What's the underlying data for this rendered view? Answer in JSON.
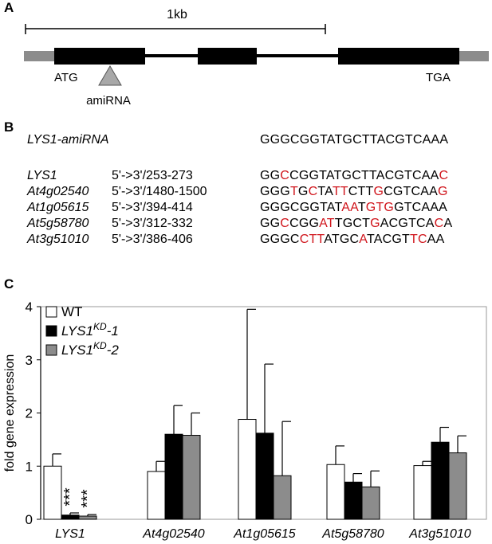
{
  "panel_a": {
    "label": "A",
    "scale_label": "1kb",
    "start_codon": "ATG",
    "stop_codon": "TGA",
    "amirna_label": "amiRNA"
  },
  "panel_b": {
    "label": "B",
    "amirna_name": "LYS1-amiRNA",
    "amirna_seq": "GGGCGGTATGCTTACGTCAAA",
    "rows": [
      {
        "name": "LYS1",
        "range": "5'->3'/253-273",
        "segments": [
          {
            "t": "GG",
            "m": false
          },
          {
            "t": "C",
            "m": true
          },
          {
            "t": "CGGTATGCTTACGTCAA",
            "m": false
          },
          {
            "t": "C",
            "m": true
          }
        ]
      },
      {
        "name": "At4g02540",
        "range": "5'->3'/1480-1500",
        "segments": [
          {
            "t": "GGG",
            "m": false
          },
          {
            "t": "T",
            "m": true
          },
          {
            "t": "G",
            "m": false
          },
          {
            "t": "C",
            "m": true
          },
          {
            "t": "TA",
            "m": false
          },
          {
            "t": "TT",
            "m": true
          },
          {
            "t": "CTT",
            "m": false
          },
          {
            "t": "G",
            "m": true
          },
          {
            "t": "CGTCAA",
            "m": false
          },
          {
            "t": "G",
            "m": true
          }
        ]
      },
      {
        "name": "At1g05615",
        "range": "5'->3'/394-414",
        "segments": [
          {
            "t": "GGGCGGTAT",
            "m": false
          },
          {
            "t": "AA",
            "m": true
          },
          {
            "t": "T",
            "m": false
          },
          {
            "t": "GTG",
            "m": true
          },
          {
            "t": "GTCAAA",
            "m": false
          }
        ]
      },
      {
        "name": "At5g58780",
        "range": "5'->3'/312-332",
        "segments": [
          {
            "t": "GG",
            "m": false
          },
          {
            "t": "C",
            "m": true
          },
          {
            "t": "CGG",
            "m": false
          },
          {
            "t": "AT",
            "m": true
          },
          {
            "t": "TGCT",
            "m": false
          },
          {
            "t": "G",
            "m": true
          },
          {
            "t": "ACGTCA",
            "m": false
          },
          {
            "t": "C",
            "m": true
          },
          {
            "t": "A",
            "m": false
          }
        ]
      },
      {
        "name": "At3g51010",
        "range": "5'->3'/386-406",
        "segments": [
          {
            "t": "GGGC",
            "m": false
          },
          {
            "t": "CTT",
            "m": true
          },
          {
            "t": "ATGC",
            "m": false
          },
          {
            "t": "A",
            "m": true
          },
          {
            "t": "TACGT",
            "m": false
          },
          {
            "t": "TC",
            "m": true
          },
          {
            "t": "AA",
            "m": false
          }
        ]
      }
    ]
  },
  "panel_c": {
    "label": "C",
    "legend_sup": "KD"
  },
  "chart_data": {
    "type": "bar",
    "ylabel": "fold gene expression",
    "ylim": [
      0,
      4
    ],
    "yticks": [
      "0",
      "1",
      "2",
      "3",
      "4"
    ],
    "categories": [
      "LYS1",
      "At4g02540",
      "At1g05615",
      "At5g58780",
      "At3g51010"
    ],
    "series": [
      {
        "name": "WT",
        "color": "#ffffff",
        "values": [
          1.0,
          0.9,
          1.88,
          1.03,
          1.01
        ],
        "errors": [
          0.23,
          0.19,
          2.07,
          0.35,
          0.08
        ]
      },
      {
        "name": "LYS1-1",
        "color": "#000000",
        "values": [
          0.08,
          1.6,
          1.62,
          0.7,
          1.45
        ],
        "errors": [
          0.04,
          0.54,
          1.3,
          0.16,
          0.28
        ]
      },
      {
        "name": "LYS1-2",
        "color": "#8c8c8c",
        "values": [
          0.06,
          1.58,
          0.82,
          0.61,
          1.25
        ],
        "errors": [
          0.03,
          0.42,
          1.02,
          0.3,
          0.32
        ]
      }
    ],
    "significance": [
      "***",
      "***"
    ],
    "legend_position": "top-left"
  }
}
